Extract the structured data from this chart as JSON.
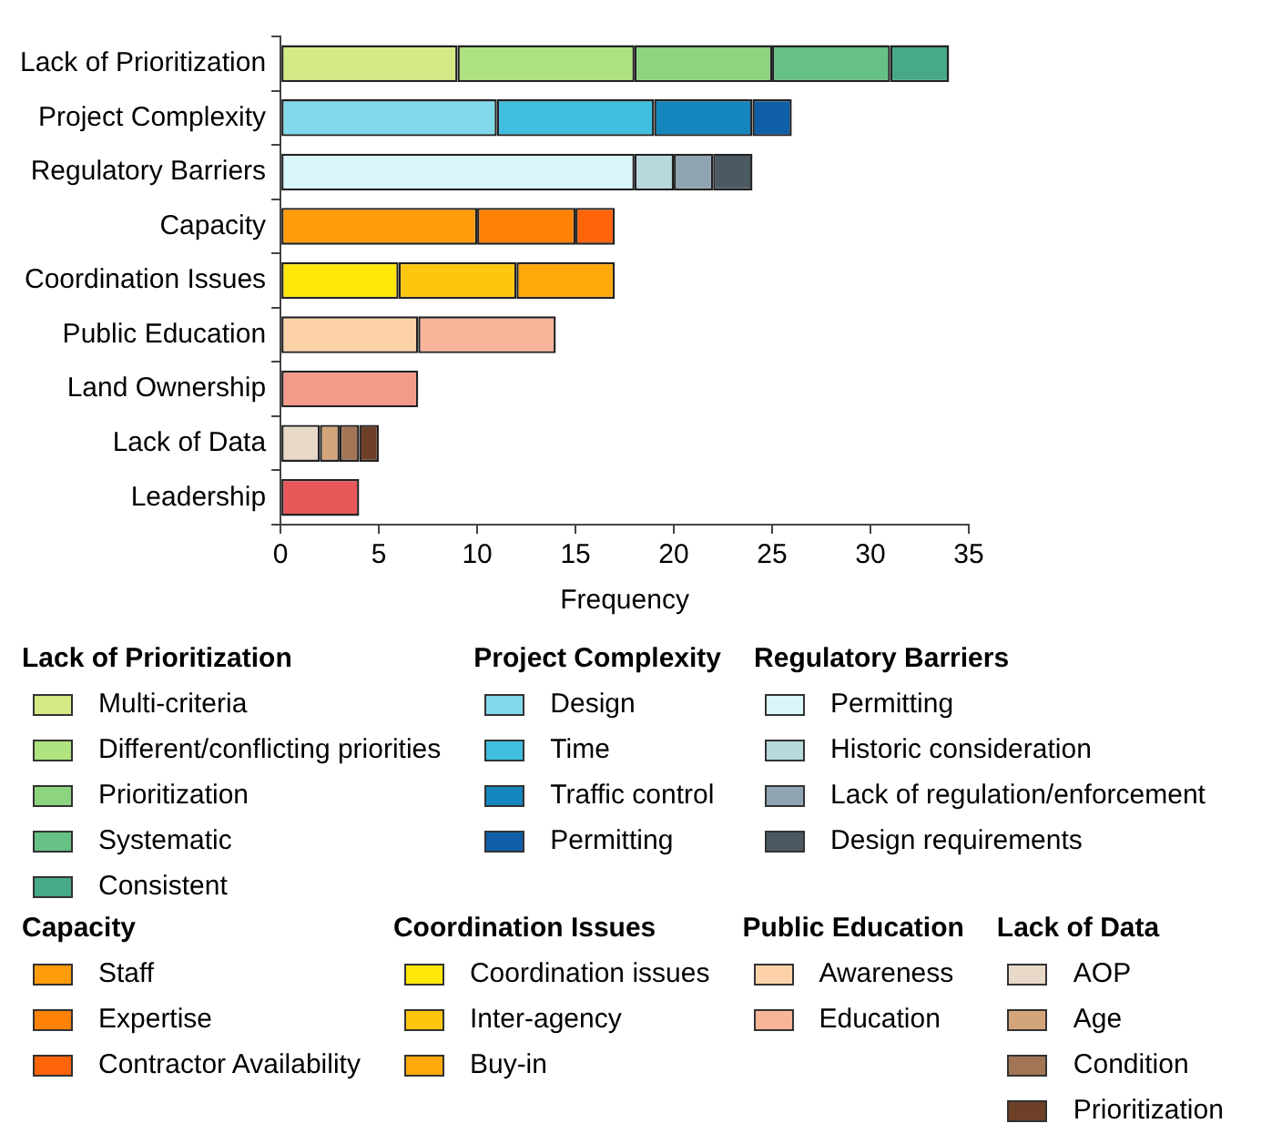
{
  "chart_data": {
    "type": "bar",
    "orientation": "horizontal",
    "stacked": true,
    "xlabel": "Frequency",
    "xlim": [
      0,
      35
    ],
    "xticks": [
      0,
      5,
      10,
      15,
      20,
      25,
      30,
      35
    ],
    "grid": false,
    "legend": "bottom",
    "categories": [
      "Lack of Prioritization",
      "Project Complexity",
      "Regulatory Barriers",
      "Capacity",
      "Coordination Issues",
      "Public Education",
      "Land Ownership",
      "Lack of Data",
      "Leadership"
    ],
    "series": [
      {
        "name": "Multi-criteria",
        "color": "#d4ea84",
        "values": [
          9,
          null,
          null,
          null,
          null,
          null,
          null,
          null,
          null
        ]
      },
      {
        "name": "Different/conflicting priorities",
        "color": "#aee37f",
        "values": [
          9,
          null,
          null,
          null,
          null,
          null,
          null,
          null,
          null
        ]
      },
      {
        "name": "Prioritization",
        "color": "#8cd47e",
        "values": [
          7,
          null,
          null,
          null,
          null,
          null,
          null,
          null,
          null
        ]
      },
      {
        "name": "Systematic",
        "color": "#66c184",
        "values": [
          6,
          null,
          null,
          null,
          null,
          null,
          null,
          null,
          null
        ]
      },
      {
        "name": "Consistent",
        "color": "#45a98a",
        "values": [
          3,
          null,
          null,
          null,
          null,
          null,
          null,
          null,
          null
        ]
      },
      {
        "name": "Design",
        "color": "#82d9ec",
        "values": [
          null,
          11,
          null,
          null,
          null,
          null,
          null,
          null,
          null
        ]
      },
      {
        "name": "Time",
        "color": "#40bfe0",
        "values": [
          null,
          8,
          null,
          null,
          null,
          null,
          null,
          null,
          null
        ]
      },
      {
        "name": "Traffic control",
        "color": "#1586bd",
        "values": [
          null,
          5,
          null,
          null,
          null,
          null,
          null,
          null,
          null
        ]
      },
      {
        "name": "Permitting",
        "color": "#0f5fa8",
        "values": [
          null,
          2,
          null,
          null,
          null,
          null,
          null,
          null,
          null
        ]
      },
      {
        "name": "Permitting",
        "color": "#d9f7fa",
        "values": [
          null,
          null,
          18,
          null,
          null,
          null,
          null,
          null,
          null
        ]
      },
      {
        "name": "Historic consideration",
        "color": "#b7d8dc",
        "values": [
          null,
          null,
          2,
          null,
          null,
          null,
          null,
          null,
          null
        ]
      },
      {
        "name": "Lack of regulation/enforcement",
        "color": "#8fa5b1",
        "values": [
          null,
          null,
          2,
          null,
          null,
          null,
          null,
          null,
          null
        ]
      },
      {
        "name": "Design requirements",
        "color": "#4b5a62",
        "values": [
          null,
          null,
          2,
          null,
          null,
          null,
          null,
          null,
          null
        ]
      },
      {
        "name": "Staff",
        "color": "#ff9c0a",
        "values": [
          null,
          null,
          null,
          10,
          null,
          null,
          null,
          null,
          null
        ]
      },
      {
        "name": "Expertise",
        "color": "#ff8205",
        "values": [
          null,
          null,
          null,
          5,
          null,
          null,
          null,
          null,
          null
        ]
      },
      {
        "name": "Contractor Availability",
        "color": "#ff640a",
        "values": [
          null,
          null,
          null,
          2,
          null,
          null,
          null,
          null,
          null
        ]
      },
      {
        "name": "Coordination issues",
        "color": "#ffe70a",
        "values": [
          null,
          null,
          null,
          null,
          6,
          null,
          null,
          null,
          null
        ]
      },
      {
        "name": "Inter-agency",
        "color": "#ffc60f",
        "values": [
          null,
          null,
          null,
          null,
          6,
          null,
          null,
          null,
          null
        ]
      },
      {
        "name": "Buy-in",
        "color": "#ffaa0a",
        "values": [
          null,
          null,
          null,
          null,
          5,
          null,
          null,
          null,
          null
        ]
      },
      {
        "name": "Awareness",
        "color": "#fed2a8",
        "values": [
          null,
          null,
          null,
          null,
          null,
          7,
          null,
          null,
          null
        ]
      },
      {
        "name": "Education",
        "color": "#f8b59a",
        "values": [
          null,
          null,
          null,
          null,
          null,
          7,
          null,
          null,
          null
        ]
      },
      {
        "color": "#f39a8b",
        "values": [
          null,
          null,
          null,
          null,
          null,
          null,
          7,
          null,
          null
        ]
      },
      {
        "name": "AOP",
        "color": "#e8d8c8",
        "values": [
          null,
          null,
          null,
          null,
          null,
          null,
          null,
          2,
          null
        ]
      },
      {
        "name": "Age",
        "color": "#d4a47a",
        "values": [
          null,
          null,
          null,
          null,
          null,
          null,
          null,
          1,
          null
        ]
      },
      {
        "name": "Condition",
        "color": "#a27655",
        "values": [
          null,
          null,
          null,
          null,
          null,
          null,
          null,
          1,
          null
        ]
      },
      {
        "name": "Prioritization",
        "color": "#6e4028",
        "values": [
          null,
          null,
          null,
          null,
          null,
          null,
          null,
          1,
          null
        ]
      },
      {
        "color": "#e8585a",
        "values": [
          null,
          null,
          null,
          null,
          null,
          null,
          null,
          null,
          4
        ]
      }
    ]
  }
}
